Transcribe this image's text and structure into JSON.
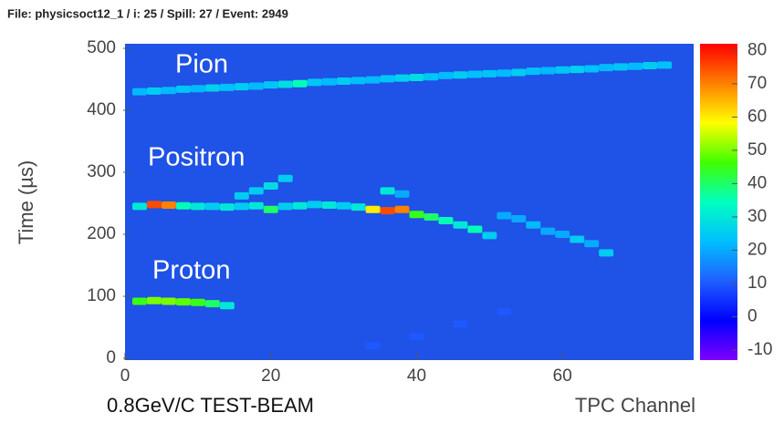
{
  "chart_data": {
    "type": "heatmap",
    "header": "File: physicsoct12_1 / i: 25 / Spill: 27 / Event: 2949",
    "xlabel": "TPC Channel",
    "ylabel": "Time (µs)",
    "footer": "0.8GeV/C  TEST-BEAM",
    "annotations": [
      "Pion",
      "Positron",
      "Proton"
    ],
    "xlim": [
      0,
      78
    ],
    "xticks": [
      0,
      20,
      40,
      60
    ],
    "ylim": [
      0,
      500
    ],
    "yticks": [
      0,
      100,
      200,
      300,
      400,
      500
    ],
    "clim": [
      -13,
      82
    ],
    "cticks": [
      -10,
      0,
      10,
      20,
      30,
      40,
      50,
      60,
      70,
      80
    ],
    "colormap": [
      "#7f00ff",
      "#0000ff",
      "#1f5fff",
      "#00bfff",
      "#00ffbf",
      "#40ff00",
      "#ffff00",
      "#ff8000",
      "#ff0000"
    ],
    "cells": {
      "x": [
        2,
        4,
        6,
        8,
        10,
        12,
        14,
        16,
        18,
        20,
        22,
        24,
        26,
        28,
        30,
        32,
        34,
        36,
        38,
        40,
        42,
        44,
        46,
        48,
        50,
        52,
        54,
        56,
        58,
        60,
        62,
        64,
        66,
        68,
        70,
        72,
        74,
        2,
        4,
        6,
        8,
        10,
        12,
        14,
        16,
        18,
        20,
        22,
        24,
        26,
        28,
        30,
        32,
        34,
        36,
        38,
        16,
        18,
        20,
        22,
        36,
        38,
        40,
        42,
        44,
        46,
        48,
        50,
        52,
        54,
        56,
        58,
        60,
        62,
        64,
        66,
        2,
        4,
        6,
        8,
        10,
        12,
        14,
        34,
        40,
        46,
        52
      ],
      "y": [
        430,
        431,
        432,
        434,
        435,
        436,
        437,
        438,
        439,
        441,
        442,
        443,
        445,
        446,
        447,
        448,
        449,
        451,
        452,
        453,
        454,
        456,
        457,
        458,
        459,
        460,
        461,
        463,
        464,
        465,
        466,
        467,
        469,
        470,
        471,
        472,
        473,
        245,
        248,
        247,
        246,
        245,
        245,
        244,
        245,
        246,
        240,
        245,
        246,
        248,
        247,
        246,
        244,
        240,
        238,
        240,
        262,
        270,
        278,
        290,
        270,
        265,
        232,
        228,
        222,
        215,
        208,
        198,
        230,
        225,
        215,
        205,
        200,
        192,
        185,
        170,
        92,
        93,
        92,
        91,
        90,
        88,
        85,
        20,
        35,
        55,
        75
      ],
      "values": [
        22,
        25,
        22,
        24,
        22,
        26,
        23,
        25,
        22,
        24,
        28,
        35,
        24,
        22,
        25,
        23,
        22,
        24,
        26,
        28,
        24,
        22,
        25,
        23,
        24,
        22,
        25,
        23,
        22,
        24,
        26,
        23,
        22,
        24,
        22,
        25,
        23,
        30,
        75,
        70,
        35,
        30,
        25,
        30,
        25,
        30,
        40,
        25,
        30,
        25,
        30,
        25,
        30,
        60,
        75,
        70,
        25,
        25,
        28,
        25,
        30,
        20,
        45,
        40,
        35,
        30,
        35,
        25,
        20,
        20,
        22,
        20,
        20,
        25,
        20,
        25,
        45,
        50,
        50,
        48,
        45,
        40,
        30,
        10,
        10,
        10,
        10
      ]
    }
  }
}
